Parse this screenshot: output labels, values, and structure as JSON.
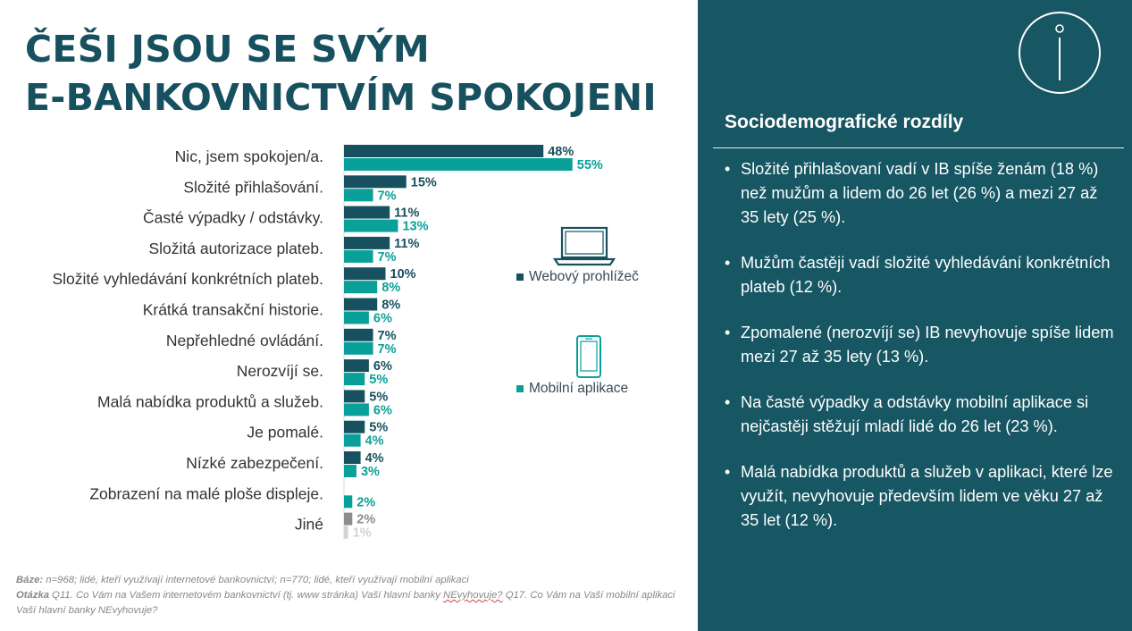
{
  "title_lines": [
    "ČEŠI JSOU SE SVÝM",
    "E-BANKOVNICTVÍM SPOKOJENI"
  ],
  "chart_data": {
    "type": "bar",
    "orientation": "horizontal",
    "categories": [
      "Nic, jsem spokojen/a.",
      "Složité přihlašování.",
      "Časté výpadky / odstávky.",
      "Složitá autorizace plateb.",
      "Složité vyhledávání konkrétních plateb.",
      "Krátká transakční historie.",
      "Nepřehledné ovládání.",
      "Nerozvíjí se.",
      "Malá nabídka produktů a služeb.",
      "Je pomalé.",
      "Nízké zabezpečení.",
      "Zobrazení na malé ploše displeje.",
      "Jiné"
    ],
    "series": [
      {
        "name": "Webový prohlížeč",
        "color": "#17505f",
        "values": [
          48,
          15,
          11,
          11,
          10,
          8,
          7,
          6,
          5,
          5,
          4,
          null,
          2
        ]
      },
      {
        "name": "Mobilní aplikace",
        "color": "#0aa09a",
        "values": [
          55,
          7,
          13,
          7,
          8,
          6,
          7,
          5,
          6,
          4,
          3,
          2,
          1
        ]
      }
    ],
    "special_colors": {
      "jine_web": "#8c8c8c",
      "jine_mobile": "#d3d3d3"
    },
    "value_suffix": "%",
    "xlim": [
      0,
      60
    ]
  },
  "legend": {
    "web_label": "Webový prohlížeč",
    "mobile_label": "Mobilní aplikace",
    "web_icon": "laptop-icon",
    "mobile_icon": "smartphone-icon"
  },
  "footnote": {
    "baze_label": "Báze:",
    "baze_text": " n=968; lidé, kteří využívají internetové bankovnictví; n=770; lidé, kteří využívají mobilní aplikaci",
    "otazka_label": "Otázka",
    "otazka_text_1": " Q11. Co Vám na Vašem internetovém bankovnictví (tj. www stránka) Vaší hlavní banky ",
    "otazka_underlined": "NEvyhovuje?",
    "otazka_text_2": " Q17. Co Vám na Vaší mobilní aplikaci Vaší hlavní banky NEvyhovuje?"
  },
  "panel": {
    "icon": "info-icon",
    "title": "Sociodemografické rozdíly",
    "bullets": [
      "Složité přihlašovaní vadí v IB spíše ženám (18 %) než mužům a lidem do 26 let (26 %) a mezi 27 až 35 lety (25 %).",
      "Mužům častěji vadí složité vyhledávání konkrétních plateb (12 %).",
      "Zpomalené (nerozvíjí se) IB nevyhovuje spíše lidem mezi 27 až 35 lety (13 %).",
      "Na časté výpadky a odstávky mobilní aplikace si nejčastěji stěžují mladí lidé do 26  let (23 %).",
      "Malá nabídka produktů a služeb v aplikaci, které lze využít, nevyhovuje především lidem ve věku 27 až 35 let (12 %)."
    ]
  },
  "colors": {
    "title": "#17505f",
    "panel_bg": "#175663",
    "web": "#17505f",
    "mobile": "#0aa09a"
  }
}
